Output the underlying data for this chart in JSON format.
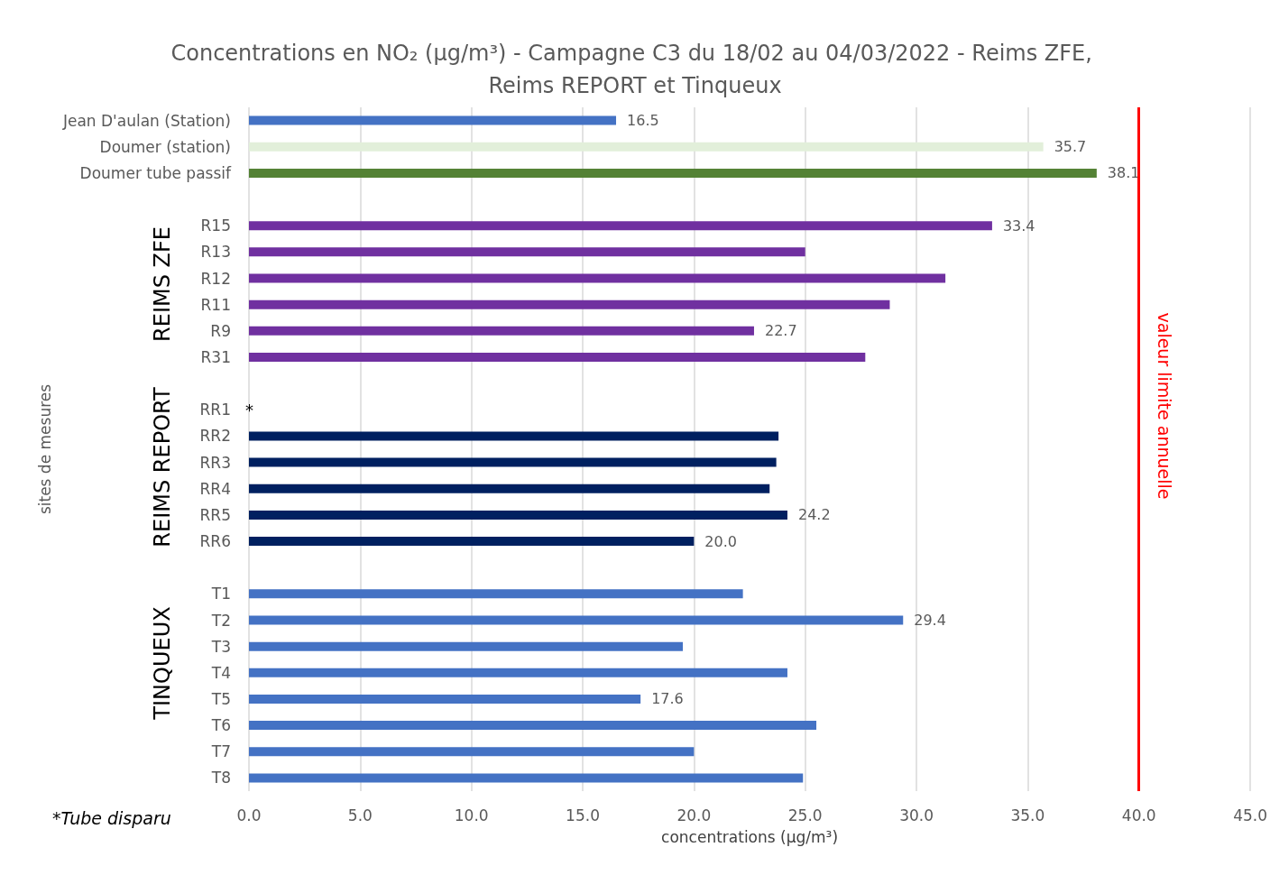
{
  "chart_data": {
    "type": "bar",
    "orientation": "horizontal",
    "title": "Concentrations en NO₂ (µg/m³) - Campagne C3 du 18/02 au 04/03/2022 - Reims ZFE, Reims REPORT et Tinqueux",
    "xlabel": "concentrations (µg/m³)",
    "ylabel": "sites de mesures",
    "categories": [
      "Jean D'aulan (Station)",
      "Doumer (station)",
      "Doumer tube passif",
      null,
      "R15",
      "R13",
      "R12",
      "R11",
      "R9",
      "R31",
      null,
      "RR1",
      "RR2",
      "RR3",
      "RR4",
      "RR5",
      "RR6",
      null,
      "T1",
      "T2",
      "T3",
      "T4",
      "T5",
      "T6",
      "T7",
      "T8"
    ],
    "values": [
      16.5,
      35.7,
      38.1,
      null,
      33.4,
      25.0,
      31.3,
      28.8,
      22.7,
      27.7,
      null,
      null,
      23.8,
      23.7,
      23.4,
      24.2,
      20.0,
      null,
      22.2,
      29.4,
      19.5,
      24.2,
      17.6,
      25.5,
      20.0,
      24.9
    ],
    "value_labels": [
      "16.5",
      "35.7",
      "38.1",
      null,
      "33.4",
      null,
      null,
      null,
      "22.7",
      null,
      null,
      null,
      null,
      null,
      null,
      "24.2",
      "20.0",
      null,
      null,
      "29.4",
      null,
      null,
      "17.6",
      null,
      null,
      null
    ],
    "colors": [
      "#4472c4",
      "#e2efda",
      "#548235",
      "#4472c4",
      "#7030a0",
      "#7030a0",
      "#7030a0",
      "#7030a0",
      "#7030a0",
      "#7030a0",
      "#002060",
      "#002060",
      "#002060",
      "#002060",
      "#002060",
      "#002060",
      "#002060",
      "#4472c4",
      "#4472c4",
      "#4472c4",
      "#4472c4",
      "#4472c4",
      "#4472c4",
      "#4472c4",
      "#4472c4",
      "#4472c4"
    ],
    "xlim": [
      0,
      45
    ],
    "xticks": [
      {
        "value": 0,
        "label": "0.0"
      },
      {
        "value": 5,
        "label": "5.0"
      },
      {
        "value": 10,
        "label": "10.0"
      },
      {
        "value": 15,
        "label": "15.0"
      },
      {
        "value": 20,
        "label": "20.0"
      },
      {
        "value": 25,
        "label": "25.0"
      },
      {
        "value": 30,
        "label": "30.0"
      },
      {
        "value": 35,
        "label": "35.0"
      },
      {
        "value": 40,
        "label": "40.0"
      },
      {
        "value": 45,
        "label": "45.0"
      }
    ],
    "grid": "x",
    "ref_lines": [
      {
        "axis": "x",
        "value": 40,
        "label": "valeur limite annuelle",
        "color": "#ff0000"
      }
    ],
    "annotations": [
      "REIMS ZFE",
      "REIMS REPORT",
      "TINQUEUX",
      "*",
      "*Tube disparu"
    ]
  }
}
